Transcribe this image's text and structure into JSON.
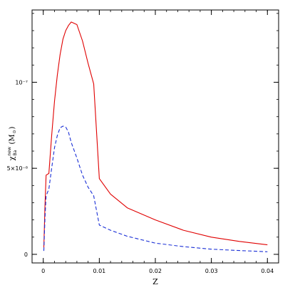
{
  "chart_data": {
    "type": "line",
    "xlabel": "Z",
    "ylabel": {
      "symbol": "χ",
      "superscript": "new",
      "subscript": "Ba",
      "unit": "(M",
      "unit_symbol": "⊙",
      "unit_close": ")"
    },
    "xlim": [
      -0.002,
      0.042
    ],
    "ylim": [
      -5e-09,
      1.42e-07
    ],
    "x_ticks": [
      {
        "value": 0,
        "label": "0"
      },
      {
        "value": 0.01,
        "label": "0.01"
      },
      {
        "value": 0.02,
        "label": "0.02"
      },
      {
        "value": 0.03,
        "label": "0.03"
      },
      {
        "value": 0.04,
        "label": "0.04"
      }
    ],
    "y_ticks": [
      {
        "value": 0,
        "label": "0"
      },
      {
        "value": 5e-08,
        "label": "5×10⁻⁸"
      },
      {
        "value": 1e-07,
        "label": "10⁻⁷"
      }
    ],
    "x_minor_step": 0.002,
    "y_minor_step": 1e-08,
    "series": [
      {
        "style": "solid",
        "color": "#e00000",
        "x": [
          0.0001,
          0.0003,
          0.0005,
          0.001,
          0.0015,
          0.002,
          0.0025,
          0.003,
          0.0035,
          0.004,
          0.0045,
          0.005,
          0.006,
          0.007,
          0.008,
          0.009,
          0.01,
          0.012,
          0.015,
          0.02,
          0.025,
          0.03,
          0.035,
          0.04
        ],
        "y": [
          4e-09,
          2.8e-08,
          4.6e-08,
          4.7e-08,
          6.9e-08,
          8.9e-08,
          1.04e-07,
          1.16e-07,
          1.25e-07,
          1.3e-07,
          1.33e-07,
          1.35e-07,
          1.335e-07,
          1.24e-07,
          1.11e-07,
          9.9e-08,
          4.4e-08,
          3.5e-08,
          2.7e-08,
          2e-08,
          1.4e-08,
          1e-08,
          7.5e-09,
          5.5e-09
        ]
      },
      {
        "style": "dashed",
        "color": "#1a2fd6",
        "x": [
          0.0001,
          0.0003,
          0.0005,
          0.001,
          0.0015,
          0.002,
          0.0025,
          0.003,
          0.0035,
          0.004,
          0.0045,
          0.005,
          0.006,
          0.007,
          0.008,
          0.009,
          0.01,
          0.012,
          0.015,
          0.02,
          0.025,
          0.03,
          0.035,
          0.04
        ],
        "y": [
          2e-09,
          2.1e-08,
          3.4e-08,
          3.8e-08,
          5e-08,
          6.2e-08,
          6.9e-08,
          7.35e-08,
          7.45e-08,
          7.4e-08,
          7.1e-08,
          6.5e-08,
          5.6e-08,
          4.6e-08,
          3.9e-08,
          3.4e-08,
          1.7e-08,
          1.4e-08,
          1.05e-08,
          6.5e-09,
          4.5e-09,
          3e-09,
          2.2e-09,
          1.5e-09
        ]
      }
    ],
    "grid": false,
    "legend": "none"
  }
}
